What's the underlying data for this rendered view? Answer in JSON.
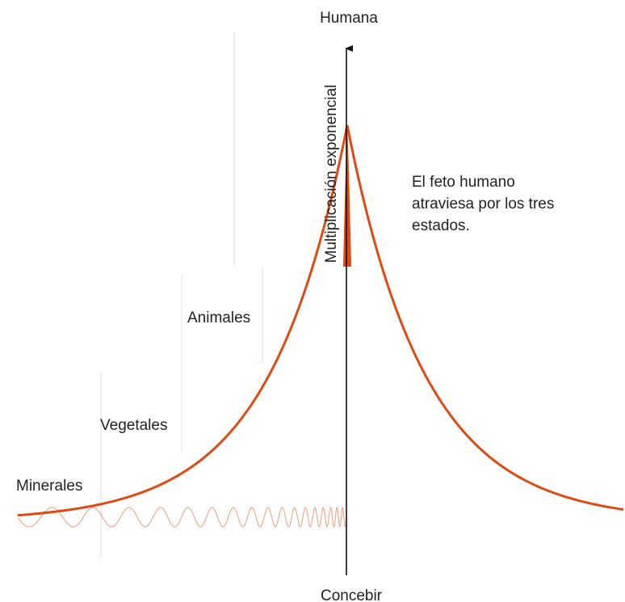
{
  "diagram": {
    "axis": {
      "top": "Humana",
      "bottom": "Concebir",
      "label": "Multiplicación exponencial"
    },
    "levels": [
      "Animales",
      "Vegetales",
      "Minerales"
    ],
    "note": [
      "El feto humano",
      "atraviesa por los tres",
      "estados."
    ]
  }
}
